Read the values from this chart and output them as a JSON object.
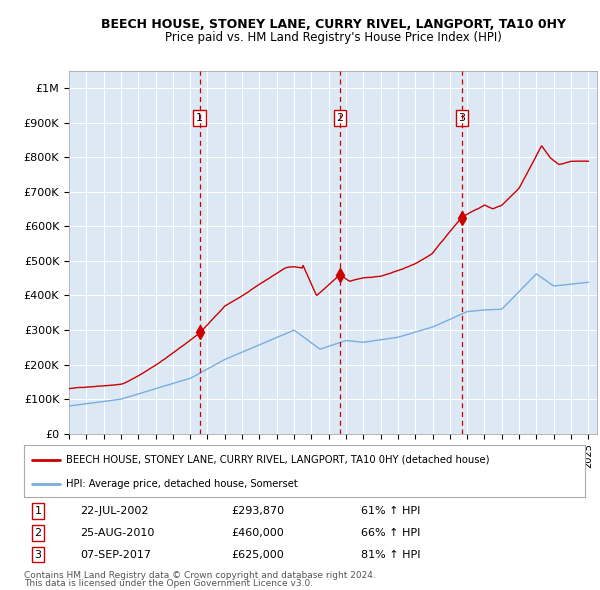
{
  "title": "BEECH HOUSE, STONEY LANE, CURRY RIVEL, LANGPORT, TA10 0HY",
  "subtitle": "Price paid vs. HM Land Registry's House Price Index (HPI)",
  "legend_line1": "BEECH HOUSE, STONEY LANE, CURRY RIVEL, LANGPORT, TA10 0HY (detached house)",
  "legend_line2": "HPI: Average price, detached house, Somerset",
  "footer1": "Contains HM Land Registry data © Crown copyright and database right 2024.",
  "footer2": "This data is licensed under the Open Government Licence v3.0.",
  "transactions": [
    {
      "num": 1,
      "date": "22-JUL-2002",
      "price": "£293,870",
      "pct": "61% ↑ HPI",
      "year": 2002.55,
      "price_val": 293870
    },
    {
      "num": 2,
      "date": "25-AUG-2010",
      "price": "£460,000",
      "pct": "66% ↑ HPI",
      "year": 2010.65,
      "price_val": 460000
    },
    {
      "num": 3,
      "date": "07-SEP-2017",
      "price": "£625,000",
      "pct": "81% ↑ HPI",
      "year": 2017.69,
      "price_val": 625000
    }
  ],
  "red_line_color": "#cc0000",
  "blue_line_color": "#7aade0",
  "plot_bg": "#dce9f5",
  "grid_color": "#ffffff",
  "ylim": [
    0,
    1050000
  ],
  "xlim_start": 1995,
  "xlim_end": 2025.5,
  "yticks": [
    0,
    100000,
    200000,
    300000,
    400000,
    500000,
    600000,
    700000,
    800000,
    900000,
    1000000
  ],
  "ytick_labels": [
    "£0",
    "£100K",
    "£200K",
    "£300K",
    "£400K",
    "£500K",
    "£600K",
    "£700K",
    "£800K",
    "£900K",
    "£1M"
  ]
}
